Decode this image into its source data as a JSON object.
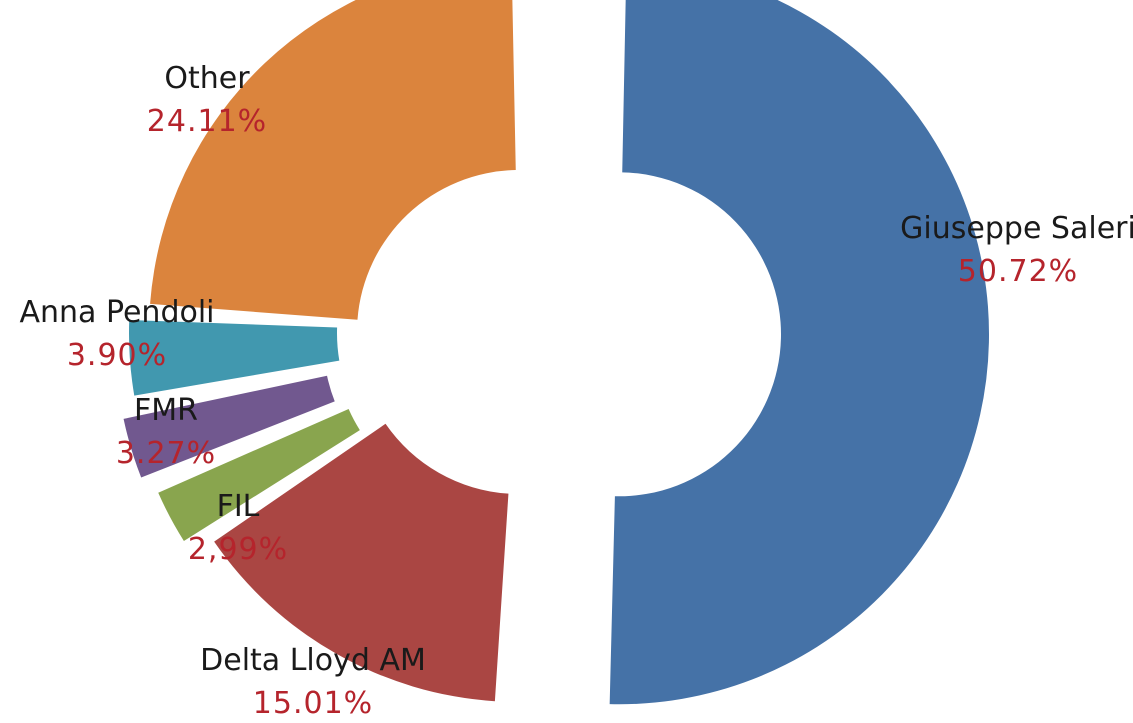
{
  "chart_data": {
    "type": "pie",
    "style": "donut, exploded segments",
    "title": "",
    "legend": "none",
    "value_label_color": "#b5242c",
    "slices": [
      {
        "name": "Giuseppe Saleri",
        "value": 50.72,
        "label": "50.72%",
        "color": "#4572a7"
      },
      {
        "name": "Delta Lloyd AM",
        "value": 15.01,
        "label": "15.01%",
        "color": "#aa4643"
      },
      {
        "name": "FIL",
        "value": 2.99,
        "label": "2,99%",
        "color": "#89a54e"
      },
      {
        "name": "FMR",
        "value": 3.27,
        "label": "3.27%",
        "color": "#71588f"
      },
      {
        "name": "Anna Pendoli",
        "value": 3.9,
        "label": "3.90%",
        "color": "#4198af"
      },
      {
        "name": "Other",
        "value": 24.11,
        "label": "24.11%",
        "color": "#db843d"
      }
    ]
  }
}
